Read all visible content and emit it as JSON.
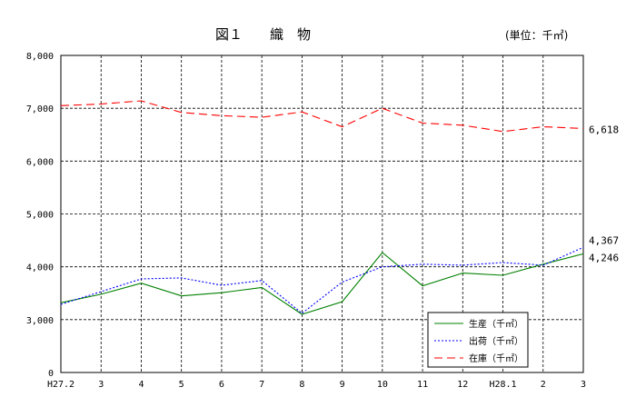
{
  "chart_data": {
    "type": "line",
    "title": "図１　　織　物",
    "unit_label": "(単位：千㎡)",
    "categories": [
      "H27.2",
      "3",
      "4",
      "5",
      "6",
      "7",
      "8",
      "9",
      "10",
      "11",
      "12",
      "H28.1",
      "2",
      "3"
    ],
    "y_ticks": [
      "0",
      "3,000",
      "4,000",
      "5,000",
      "6,000",
      "7,000",
      "8,000"
    ],
    "ylim": [
      0,
      8000
    ],
    "axis_break": "0 to 3,000 compressed",
    "grid": "dashed",
    "legend_position": "bottom-right",
    "series": [
      {
        "name": "生産（千㎡）",
        "color": "#008000",
        "dash": "solid",
        "values": [
          3320,
          3480,
          3690,
          3450,
          3510,
          3610,
          3100,
          3340,
          4270,
          3640,
          3880,
          3840,
          4050,
          4246
        ],
        "end_label": "4,246"
      },
      {
        "name": "出荷（千㎡）",
        "color": "#0000ff",
        "dash": "dotted",
        "values": [
          3290,
          3530,
          3770,
          3790,
          3650,
          3740,
          3120,
          3710,
          4000,
          4050,
          4030,
          4080,
          4030,
          4367
        ],
        "end_label": "4,367"
      },
      {
        "name": "在庫（千㎡）",
        "color": "#ff0000",
        "dash": "dashed",
        "values": [
          7050,
          7080,
          7140,
          6920,
          6860,
          6830,
          6930,
          6650,
          7000,
          6720,
          6680,
          6560,
          6650,
          6618
        ],
        "end_label": "6,618"
      }
    ]
  }
}
